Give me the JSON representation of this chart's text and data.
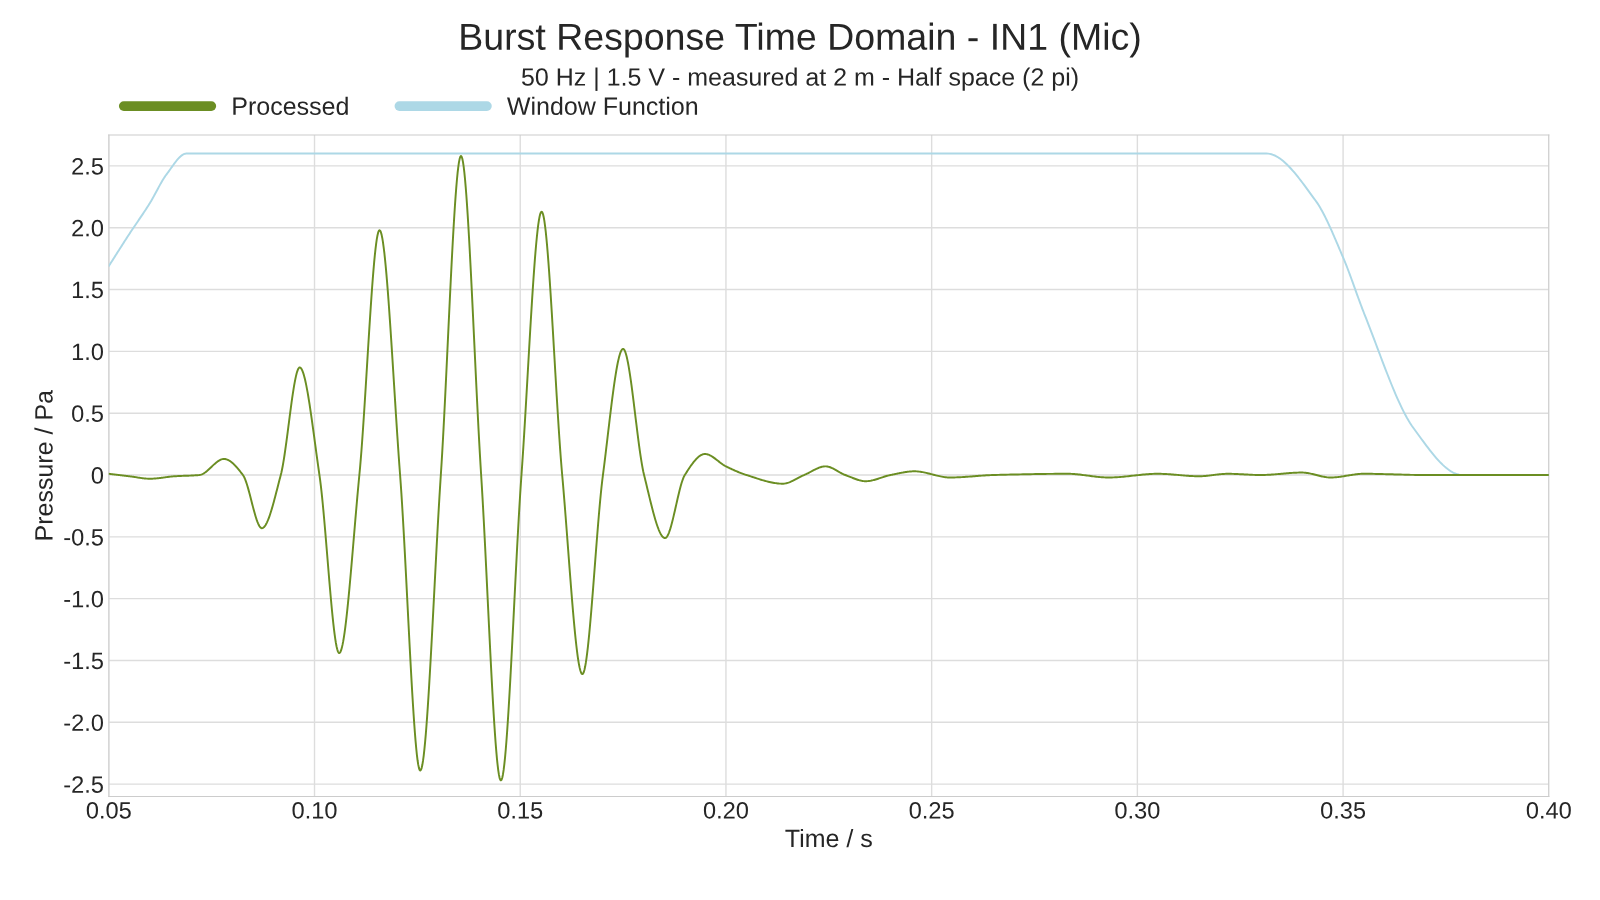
{
  "chart_data": {
    "type": "line",
    "title": "Burst Response Time Domain - IN1 (Mic)",
    "subtitle": "50 Hz | 1.5 V - measured at 2 m - Half space (2 pi)",
    "xlabel": "Time / s",
    "ylabel": "Pressure / Pa",
    "xlim": [
      0.05,
      0.4
    ],
    "ylim": [
      -2.6,
      2.75
    ],
    "xticks": [
      {
        "value": 0.05,
        "label": "0.05"
      },
      {
        "value": 0.1,
        "label": "0.10"
      },
      {
        "value": 0.15,
        "label": "0.15"
      },
      {
        "value": 0.2,
        "label": "0.20"
      },
      {
        "value": 0.25,
        "label": "0.25"
      },
      {
        "value": 0.3,
        "label": "0.30"
      },
      {
        "value": 0.35,
        "label": "0.35"
      },
      {
        "value": 0.4,
        "label": "0.40"
      }
    ],
    "yticks": [
      {
        "value": -2.5,
        "label": "-2.5"
      },
      {
        "value": -2.0,
        "label": "-2.0"
      },
      {
        "value": -1.5,
        "label": "-1.5"
      },
      {
        "value": -1.0,
        "label": "-1.0"
      },
      {
        "value": -0.5,
        "label": "-0.5"
      },
      0,
      0.5,
      {
        "value": 1.0,
        "label": "1.0"
      },
      1.5,
      {
        "value": 2.0,
        "label": "2.0"
      },
      2.5
    ],
    "grid": true,
    "legend": "top left",
    "series": [
      {
        "name": "Window Function",
        "color": "#add8e6",
        "x": [
          0.05,
          0.055,
          0.06,
          0.064,
          0.0689,
          0.3314,
          0.3433,
          0.35,
          0.3552,
          0.3671,
          0.379,
          0.4
        ],
        "values": [
          1.69,
          1.95,
          2.2,
          2.43,
          2.6,
          2.6,
          2.22,
          1.76,
          1.3,
          0.38,
          0,
          0
        ]
      },
      {
        "name": "Processed",
        "color": "#6b8e23",
        "x": [
          0.05,
          0.055,
          0.06,
          0.066,
          0.072,
          0.078,
          0.0826,
          0.0872,
          0.0918,
          0.0964,
          0.1012,
          0.106,
          0.1109,
          0.1158,
          0.1208,
          0.1257,
          0.1307,
          0.1356,
          0.1405,
          0.1453,
          0.1503,
          0.1552,
          0.1602,
          0.1651,
          0.1701,
          0.175,
          0.1801,
          0.1852,
          0.19,
          0.1949,
          0.2,
          0.205,
          0.2138,
          0.219,
          0.2242,
          0.229,
          0.234,
          0.24,
          0.2458,
          0.2545,
          0.265,
          0.283,
          0.293,
          0.305,
          0.315,
          0.322,
          0.33,
          0.34,
          0.347,
          0.355,
          0.37,
          0.4
        ],
        "values": [
          0.01,
          -0.01,
          -0.03,
          -0.01,
          0.0,
          0.13,
          0,
          -0.43,
          0,
          0.87,
          0,
          -1.44,
          0,
          1.98,
          0,
          -2.39,
          0,
          2.58,
          0,
          -2.47,
          0,
          2.13,
          0,
          -1.61,
          0,
          1.02,
          0,
          -0.51,
          0,
          0.17,
          0.07,
          0.0,
          -0.07,
          0,
          0.07,
          0,
          -0.05,
          0,
          0.03,
          -0.02,
          0,
          0.01,
          -0.02,
          0.01,
          -0.01,
          0.01,
          0,
          0.02,
          -0.02,
          0.01,
          0,
          0
        ]
      }
    ]
  }
}
